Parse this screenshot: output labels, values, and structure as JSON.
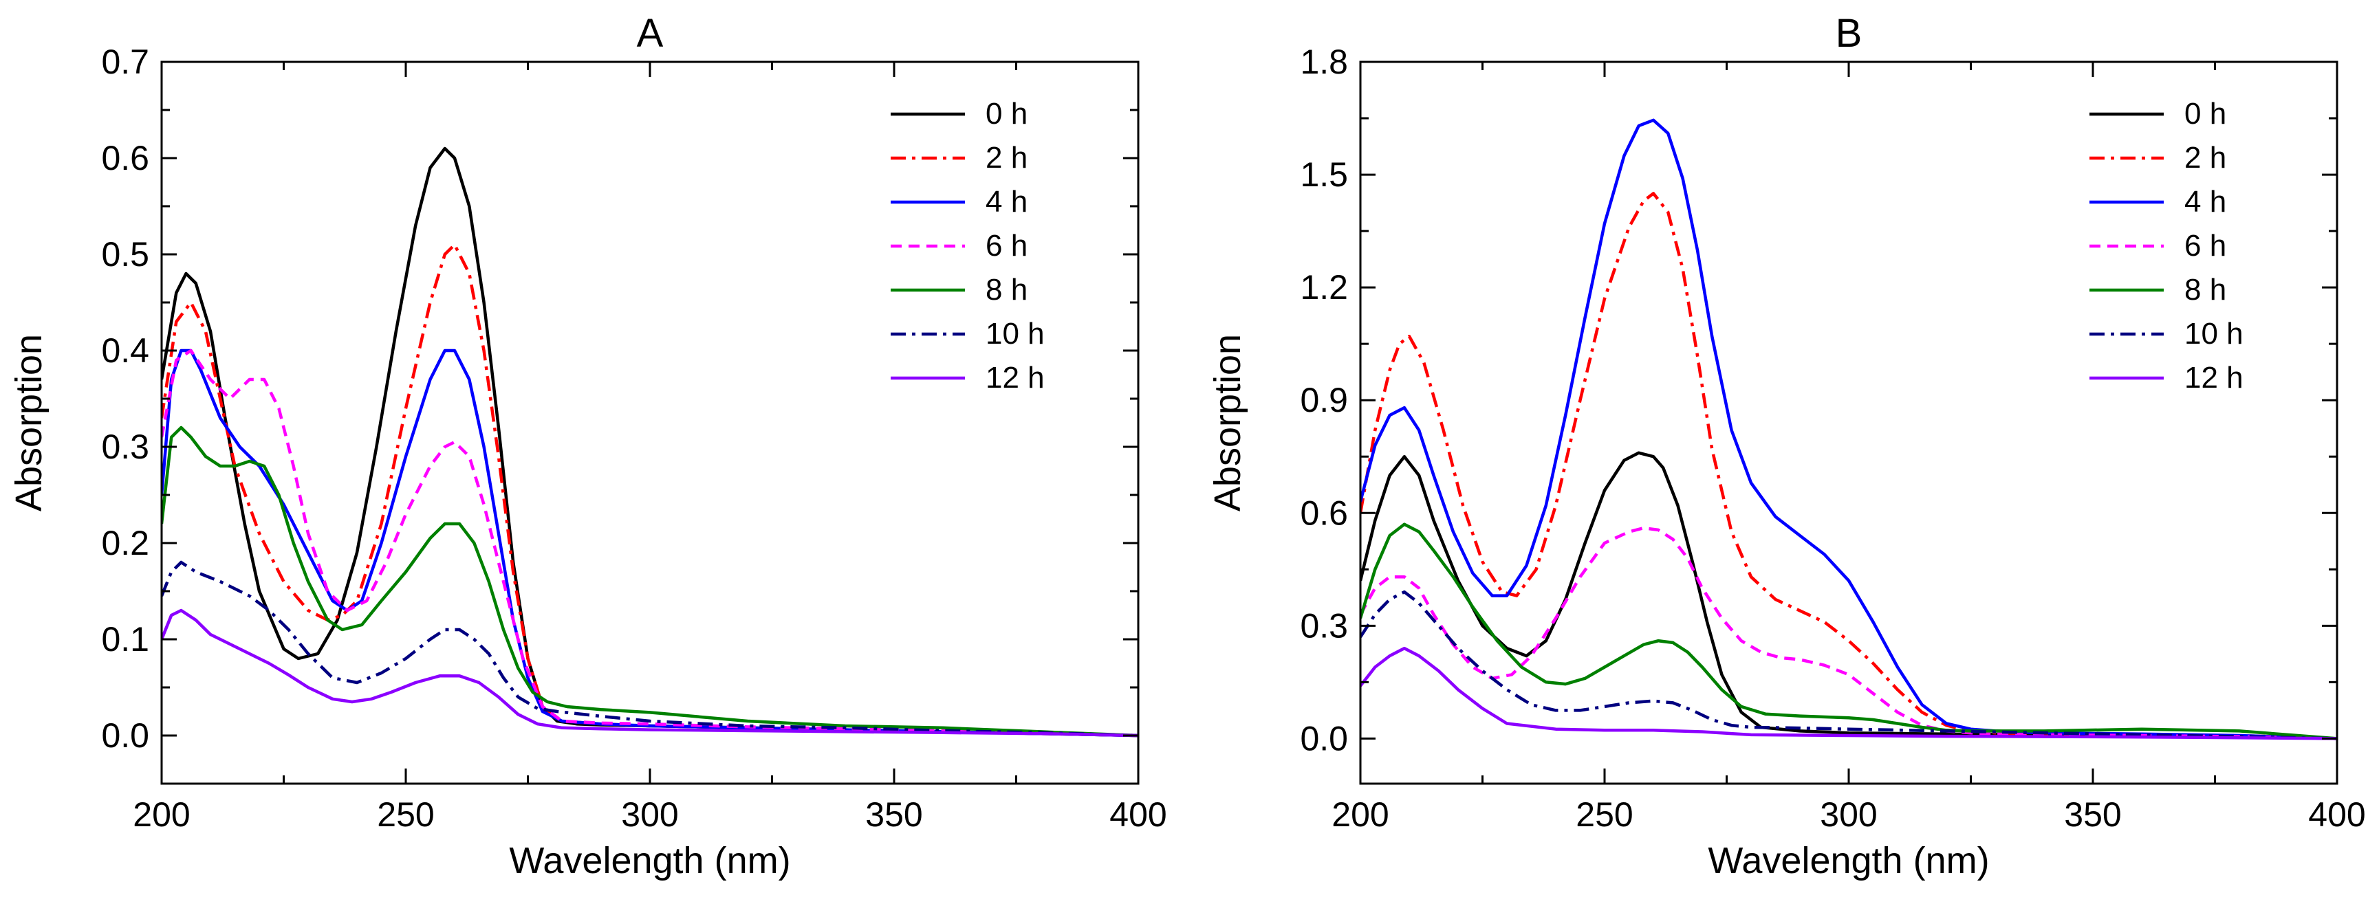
{
  "chart_data": [
    {
      "type": "line",
      "title": "A",
      "xlabel": "Wavelength (nm)",
      "ylabel": "Absorption",
      "xlim": [
        200,
        400
      ],
      "ylim": [
        -0.05,
        0.7
      ],
      "xticks": [
        200,
        250,
        300,
        350,
        400
      ],
      "yticks": [
        0.0,
        0.1,
        0.2,
        0.3,
        0.4,
        0.5,
        0.6,
        0.7
      ],
      "ytick_decimals": 1,
      "grid": false,
      "legend_position": "top-right",
      "series": [
        {
          "name": "0 h",
          "color": "#000000",
          "dash": "solid",
          "x": [
            200,
            203,
            205,
            207,
            210,
            213,
            217,
            220,
            225,
            228,
            232,
            236,
            240,
            244,
            248,
            252,
            255,
            258,
            260,
            263,
            266,
            269,
            272,
            275,
            278,
            281,
            285,
            290,
            300,
            320,
            340,
            360,
            380,
            400
          ],
          "y": [
            0.37,
            0.46,
            0.48,
            0.47,
            0.42,
            0.33,
            0.22,
            0.15,
            0.09,
            0.08,
            0.085,
            0.12,
            0.19,
            0.3,
            0.42,
            0.53,
            0.59,
            0.61,
            0.6,
            0.55,
            0.45,
            0.32,
            0.18,
            0.08,
            0.03,
            0.015,
            0.012,
            0.011,
            0.01,
            0.008,
            0.006,
            0.004,
            0.002,
            0.0
          ]
        },
        {
          "name": "2 h",
          "color": "#ff0000",
          "dash": "dashdot",
          "x": [
            200,
            203,
            206,
            209,
            212,
            215,
            220,
            225,
            230,
            234,
            237,
            240,
            245,
            250,
            255,
            258,
            260,
            263,
            266,
            269,
            272,
            275,
            278,
            282,
            290,
            300,
            320,
            340,
            360,
            380,
            400
          ],
          "y": [
            0.33,
            0.43,
            0.45,
            0.42,
            0.35,
            0.28,
            0.21,
            0.16,
            0.13,
            0.12,
            0.125,
            0.14,
            0.22,
            0.34,
            0.45,
            0.5,
            0.51,
            0.48,
            0.4,
            0.29,
            0.17,
            0.08,
            0.03,
            0.015,
            0.012,
            0.01,
            0.008,
            0.006,
            0.004,
            0.002,
            0.0
          ]
        },
        {
          "name": "4 h",
          "color": "#0000ff",
          "dash": "solid",
          "x": [
            200,
            202,
            204,
            206,
            208,
            212,
            216,
            220,
            225,
            230,
            235,
            238,
            241,
            245,
            250,
            255,
            258,
            260,
            263,
            266,
            269,
            272,
            275,
            278,
            282,
            290,
            300,
            320,
            340,
            360,
            380,
            400
          ],
          "y": [
            0.25,
            0.37,
            0.4,
            0.4,
            0.38,
            0.33,
            0.3,
            0.28,
            0.24,
            0.19,
            0.14,
            0.13,
            0.14,
            0.2,
            0.29,
            0.37,
            0.4,
            0.4,
            0.37,
            0.3,
            0.21,
            0.12,
            0.06,
            0.025,
            0.015,
            0.012,
            0.01,
            0.008,
            0.006,
            0.004,
            0.002,
            0.0
          ]
        },
        {
          "name": "6 h",
          "color": "#ff00ff",
          "dash": "dash",
          "x": [
            200,
            203,
            206,
            210,
            214,
            218,
            221,
            224,
            227,
            230,
            234,
            238,
            242,
            246,
            250,
            255,
            258,
            260,
            263,
            266,
            270,
            274,
            278,
            282,
            290,
            300,
            320,
            340,
            360,
            380,
            400
          ],
          "y": [
            0.31,
            0.39,
            0.4,
            0.37,
            0.35,
            0.37,
            0.37,
            0.34,
            0.28,
            0.21,
            0.15,
            0.13,
            0.14,
            0.18,
            0.23,
            0.28,
            0.3,
            0.305,
            0.29,
            0.24,
            0.16,
            0.08,
            0.03,
            0.015,
            0.013,
            0.012,
            0.009,
            0.007,
            0.005,
            0.003,
            0.0
          ]
        },
        {
          "name": "8 h",
          "color": "#008000",
          "dash": "solid",
          "x": [
            200,
            202,
            204,
            206,
            209,
            212,
            215,
            218,
            221,
            224,
            227,
            230,
            234,
            237,
            241,
            245,
            250,
            255,
            258,
            261,
            264,
            267,
            270,
            273,
            276,
            279,
            283,
            290,
            300,
            320,
            340,
            360,
            380,
            400
          ],
          "y": [
            0.22,
            0.31,
            0.32,
            0.31,
            0.29,
            0.28,
            0.28,
            0.285,
            0.28,
            0.25,
            0.2,
            0.16,
            0.12,
            0.11,
            0.115,
            0.14,
            0.17,
            0.205,
            0.22,
            0.22,
            0.2,
            0.16,
            0.11,
            0.07,
            0.045,
            0.035,
            0.03,
            0.027,
            0.024,
            0.015,
            0.01,
            0.008,
            0.004,
            0.0
          ]
        },
        {
          "name": "10 h",
          "color": "#000080",
          "dash": "dashdot",
          "x": [
            200,
            202,
            204,
            207,
            212,
            218,
            222,
            226,
            230,
            235,
            240,
            245,
            250,
            255,
            258,
            261,
            264,
            267,
            270,
            273,
            277,
            281,
            290,
            300,
            320,
            340,
            360,
            380,
            400
          ],
          "y": [
            0.145,
            0.17,
            0.18,
            0.17,
            0.16,
            0.145,
            0.13,
            0.11,
            0.085,
            0.06,
            0.055,
            0.065,
            0.08,
            0.1,
            0.11,
            0.11,
            0.1,
            0.085,
            0.06,
            0.04,
            0.028,
            0.025,
            0.02,
            0.015,
            0.01,
            0.008,
            0.005,
            0.003,
            0.0
          ]
        },
        {
          "name": "12 h",
          "color": "#8b00ff",
          "dash": "solid",
          "x": [
            200,
            202,
            204,
            207,
            210,
            214,
            218,
            222,
            226,
            230,
            235,
            239,
            243,
            247,
            252,
            257,
            261,
            265,
            269,
            273,
            277,
            282,
            290,
            300,
            320,
            340,
            360,
            380,
            400
          ],
          "y": [
            0.1,
            0.125,
            0.13,
            0.12,
            0.105,
            0.095,
            0.085,
            0.075,
            0.063,
            0.05,
            0.038,
            0.035,
            0.038,
            0.045,
            0.055,
            0.062,
            0.062,
            0.055,
            0.04,
            0.022,
            0.012,
            0.008,
            0.007,
            0.006,
            0.005,
            0.004,
            0.003,
            0.002,
            0.0
          ]
        }
      ]
    },
    {
      "type": "line",
      "title": "B",
      "xlabel": "Wavelength (nm)",
      "ylabel": "Absorption",
      "xlim": [
        200,
        400
      ],
      "ylim": [
        -0.12,
        1.8
      ],
      "xticks": [
        200,
        250,
        300,
        350,
        400
      ],
      "yticks": [
        0.0,
        0.3,
        0.6,
        0.9,
        1.2,
        1.5,
        1.8
      ],
      "ytick_decimals": 1,
      "grid": false,
      "legend_position": "top-right",
      "series": [
        {
          "name": "0 h",
          "color": "#000000",
          "dash": "solid",
          "x": [
            200,
            203,
            206,
            209,
            212,
            215,
            220,
            225,
            230,
            234,
            238,
            242,
            246,
            250,
            254,
            257,
            260,
            262,
            265,
            268,
            271,
            274,
            278,
            282,
            290,
            300,
            320,
            340,
            360,
            380,
            400
          ],
          "y": [
            0.42,
            0.58,
            0.7,
            0.75,
            0.7,
            0.58,
            0.42,
            0.3,
            0.24,
            0.22,
            0.26,
            0.37,
            0.52,
            0.66,
            0.74,
            0.76,
            0.75,
            0.72,
            0.62,
            0.47,
            0.31,
            0.17,
            0.07,
            0.03,
            0.02,
            0.015,
            0.012,
            0.01,
            0.008,
            0.005,
            0.0
          ]
        },
        {
          "name": "2 h",
          "color": "#ff0000",
          "dash": "dashdot",
          "x": [
            200,
            203,
            206,
            208,
            210,
            213,
            217,
            221,
            225,
            229,
            232,
            236,
            240,
            245,
            250,
            255,
            258,
            260,
            263,
            266,
            269,
            272,
            276,
            280,
            285,
            290,
            295,
            300,
            305,
            310,
            315,
            320,
            325,
            330,
            340,
            360,
            380,
            400
          ],
          "y": [
            0.6,
            0.82,
            0.98,
            1.05,
            1.07,
            1.0,
            0.82,
            0.62,
            0.47,
            0.39,
            0.38,
            0.45,
            0.62,
            0.9,
            1.17,
            1.36,
            1.43,
            1.45,
            1.4,
            1.25,
            1.02,
            0.77,
            0.55,
            0.43,
            0.37,
            0.34,
            0.31,
            0.26,
            0.2,
            0.13,
            0.07,
            0.035,
            0.02,
            0.015,
            0.012,
            0.01,
            0.008,
            0.0
          ]
        },
        {
          "name": "4 h",
          "color": "#0000ff",
          "dash": "solid",
          "x": [
            200,
            203,
            206,
            209,
            212,
            215,
            219,
            223,
            227,
            230,
            234,
            238,
            242,
            246,
            250,
            254,
            257,
            260,
            263,
            266,
            269,
            272,
            276,
            280,
            285,
            290,
            295,
            300,
            305,
            310,
            315,
            320,
            325,
            330,
            340,
            360,
            380,
            400
          ],
          "y": [
            0.63,
            0.78,
            0.86,
            0.88,
            0.82,
            0.7,
            0.55,
            0.44,
            0.38,
            0.38,
            0.46,
            0.62,
            0.86,
            1.12,
            1.37,
            1.55,
            1.63,
            1.645,
            1.61,
            1.49,
            1.3,
            1.07,
            0.82,
            0.68,
            0.59,
            0.54,
            0.49,
            0.42,
            0.31,
            0.19,
            0.09,
            0.04,
            0.025,
            0.02,
            0.015,
            0.012,
            0.008,
            0.0
          ]
        },
        {
          "name": "6 h",
          "color": "#ff00ff",
          "dash": "dash",
          "x": [
            200,
            203,
            206,
            209,
            212,
            215,
            219,
            223,
            227,
            231,
            235,
            240,
            245,
            250,
            255,
            258,
            261,
            264,
            267,
            270,
            274,
            278,
            282,
            286,
            290,
            295,
            300,
            305,
            310,
            315,
            320,
            325,
            330,
            340,
            360,
            380,
            400
          ],
          "y": [
            0.33,
            0.4,
            0.43,
            0.43,
            0.4,
            0.33,
            0.25,
            0.19,
            0.16,
            0.17,
            0.22,
            0.32,
            0.43,
            0.52,
            0.55,
            0.56,
            0.555,
            0.53,
            0.48,
            0.4,
            0.32,
            0.26,
            0.23,
            0.215,
            0.21,
            0.195,
            0.17,
            0.12,
            0.07,
            0.035,
            0.02,
            0.015,
            0.012,
            0.01,
            0.008,
            0.005,
            0.0
          ]
        },
        {
          "name": "8 h",
          "color": "#008000",
          "dash": "solid",
          "x": [
            200,
            203,
            206,
            209,
            212,
            215,
            219,
            223,
            228,
            233,
            238,
            242,
            246,
            250,
            254,
            258,
            261,
            264,
            267,
            270,
            274,
            278,
            283,
            290,
            300,
            305,
            310,
            315,
            320,
            325,
            330,
            340,
            360,
            380,
            400
          ],
          "y": [
            0.32,
            0.45,
            0.54,
            0.57,
            0.55,
            0.5,
            0.43,
            0.35,
            0.26,
            0.19,
            0.15,
            0.145,
            0.16,
            0.19,
            0.22,
            0.25,
            0.26,
            0.255,
            0.23,
            0.19,
            0.13,
            0.085,
            0.065,
            0.06,
            0.055,
            0.05,
            0.04,
            0.03,
            0.022,
            0.02,
            0.02,
            0.02,
            0.025,
            0.02,
            0.0
          ]
        },
        {
          "name": "10 h",
          "color": "#000080",
          "dash": "dashdot",
          "x": [
            200,
            203,
            206,
            209,
            212,
            216,
            220,
            225,
            230,
            235,
            240,
            245,
            250,
            255,
            260,
            264,
            268,
            272,
            276,
            280,
            290,
            300,
            320,
            340,
            360,
            380,
            400
          ],
          "y": [
            0.27,
            0.33,
            0.37,
            0.39,
            0.36,
            0.3,
            0.24,
            0.18,
            0.13,
            0.09,
            0.075,
            0.075,
            0.085,
            0.095,
            0.1,
            0.095,
            0.075,
            0.05,
            0.035,
            0.03,
            0.028,
            0.025,
            0.02,
            0.015,
            0.01,
            0.005,
            0.0
          ]
        },
        {
          "name": "12 h",
          "color": "#8b00ff",
          "dash": "solid",
          "x": [
            200,
            203,
            206,
            209,
            212,
            216,
            220,
            225,
            230,
            240,
            250,
            260,
            270,
            280,
            300,
            320,
            340,
            360,
            380,
            400
          ],
          "y": [
            0.14,
            0.19,
            0.22,
            0.24,
            0.22,
            0.18,
            0.13,
            0.08,
            0.04,
            0.025,
            0.022,
            0.022,
            0.018,
            0.01,
            0.008,
            0.006,
            0.005,
            0.004,
            0.002,
            0.0
          ]
        }
      ]
    }
  ]
}
